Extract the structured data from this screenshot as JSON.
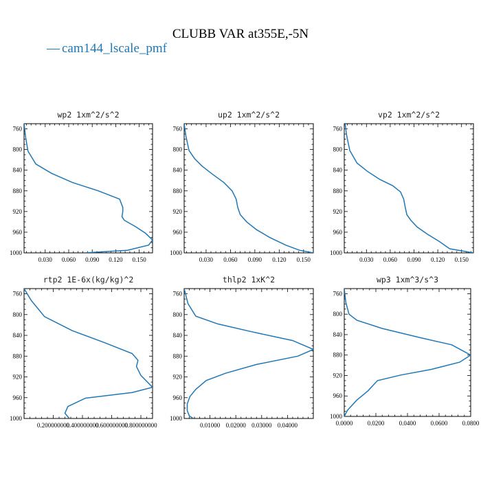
{
  "figure_title": "CLUBB VAR at355E,-5N",
  "legend": {
    "line_symbol": "—",
    "label": "cam144_lscale_pmf"
  },
  "colors": {
    "series": "#1f77b4",
    "text": "#000000"
  },
  "chart_data": [
    {
      "type": "line",
      "title": "wp2   1xm^2/s^2",
      "ylim": [
        1000,
        750
      ],
      "xlim": [
        0.003,
        0.167
      ],
      "yticks": [
        760,
        800,
        840,
        880,
        920,
        960,
        1000
      ],
      "xticks": [
        0.03,
        0.06,
        0.09,
        0.12,
        0.15
      ],
      "xtick_labels": [
        "0.030",
        "0.060",
        "0.090",
        "0.120",
        "0.150"
      ],
      "series": [
        {
          "x": [
            0.003,
            0.005,
            0.008,
            0.018,
            0.038,
            0.065,
            0.098,
            0.125,
            0.129,
            0.129,
            0.128,
            0.131,
            0.145,
            0.158,
            0.167,
            0.162,
            0.135,
            0.08
          ],
          "y": [
            750,
            776,
            803,
            828,
            846,
            864,
            880,
            896,
            912,
            920,
            930,
            937,
            949,
            962,
            975,
            985,
            995,
            1000
          ]
        }
      ]
    },
    {
      "type": "line",
      "title": "up2   1xm^2/s^2",
      "ylim": [
        1000,
        750
      ],
      "xlim": [
        0.003,
        0.162
      ],
      "yticks": [
        760,
        800,
        840,
        880,
        920,
        960,
        1000
      ],
      "xticks": [
        0.03,
        0.06,
        0.09,
        0.12,
        0.15
      ],
      "xtick_labels": [
        "0.030",
        "0.060",
        "0.090",
        "0.120",
        "0.150"
      ],
      "series": [
        {
          "x": [
            0.003,
            0.005,
            0.009,
            0.016,
            0.025,
            0.038,
            0.052,
            0.062,
            0.067,
            0.069,
            0.072,
            0.08,
            0.092,
            0.108,
            0.128,
            0.145,
            0.162
          ],
          "y": [
            750,
            773,
            802,
            818,
            832,
            848,
            864,
            880,
            896,
            912,
            926,
            940,
            955,
            970,
            985,
            995,
            1000
          ]
        }
      ]
    },
    {
      "type": "line",
      "title": "vp2   1xm^2/s^2",
      "ylim": [
        1000,
        750
      ],
      "xlim": [
        0.002,
        0.165
      ],
      "yticks": [
        760,
        800,
        840,
        880,
        920,
        960,
        1000
      ],
      "xticks": [
        0.03,
        0.06,
        0.09,
        0.12,
        0.15
      ],
      "xtick_labels": [
        "0.030",
        "0.060",
        "0.090",
        "0.120",
        "0.150"
      ],
      "series": [
        {
          "x": [
            0.003,
            0.005,
            0.009,
            0.018,
            0.031,
            0.047,
            0.063,
            0.073,
            0.077,
            0.079,
            0.081,
            0.086,
            0.094,
            0.107,
            0.122,
            0.135,
            0.165
          ],
          "y": [
            750,
            773,
            802,
            826,
            842,
            858,
            870,
            882,
            896,
            912,
            926,
            937,
            950,
            964,
            978,
            992,
            1000
          ]
        }
      ]
    },
    {
      "type": "line",
      "title": "rtp2   1E-6x(kg/kg)^2",
      "ylim": [
        1000,
        750
      ],
      "xlim": [
        0.0,
        0.88
      ],
      "yticks": [
        760,
        800,
        840,
        880,
        920,
        960,
        1000
      ],
      "xticks": [
        0.2,
        0.4,
        0.6,
        0.8
      ],
      "xtick_labels": [
        "0.200000000",
        "0.400000000",
        "0.600000000",
        "0.800000000"
      ],
      "series": [
        {
          "x": [
            0.0,
            0.05,
            0.14,
            0.33,
            0.55,
            0.74,
            0.78,
            0.77,
            0.8,
            0.88,
            0.74,
            0.42,
            0.3,
            0.28,
            0.31
          ],
          "y": [
            750,
            773,
            804,
            831,
            854,
            875,
            888,
            900,
            917,
            940,
            950,
            961,
            977,
            990,
            1000
          ]
        }
      ]
    },
    {
      "type": "line",
      "title": "thlp2   1xK^2",
      "ylim": [
        1000,
        750
      ],
      "xlim": [
        0.0,
        0.05
      ],
      "yticks": [
        760,
        800,
        840,
        880,
        920,
        960,
        1000
      ],
      "xticks": [
        0.01,
        0.02,
        0.03,
        0.04
      ],
      "xtick_labels": [
        "0.01000",
        "0.02000",
        "0.03000",
        "0.04000"
      ],
      "series": [
        {
          "x": [
            0.0,
            0.0015,
            0.0045,
            0.013,
            0.026,
            0.042,
            0.05,
            0.044,
            0.028,
            0.016,
            0.0085,
            0.0045,
            0.0022,
            0.0012,
            0.0012,
            0.002,
            0.0035
          ],
          "y": [
            750,
            779,
            803,
            818,
            833,
            850,
            867,
            880,
            896,
            913,
            927,
            944,
            958,
            972,
            985,
            995,
            1000
          ]
        }
      ]
    },
    {
      "type": "line",
      "title": "wp3   1xm^3/s^3",
      "ylim": [
        1000,
        750
      ],
      "xlim": [
        0.0,
        0.08
      ],
      "yticks": [
        760,
        800,
        840,
        880,
        920,
        960,
        1000
      ],
      "xticks": [
        0.0,
        0.02,
        0.04,
        0.06,
        0.08
      ],
      "xtick_labels": [
        "0.0000",
        "0.0200",
        "0.0400",
        "0.0600",
        "0.0800"
      ],
      "series": [
        {
          "x": [
            0.0,
            0.001,
            0.003,
            0.008,
            0.024,
            0.048,
            0.068,
            0.074,
            0.08,
            0.073,
            0.055,
            0.036,
            0.021,
            0.015,
            0.008,
            0.002,
            0.0
          ],
          "y": [
            750,
            777,
            800,
            812,
            828,
            846,
            860,
            870,
            880,
            894,
            908,
            919,
            930,
            950,
            968,
            988,
            1000
          ]
        }
      ]
    }
  ]
}
